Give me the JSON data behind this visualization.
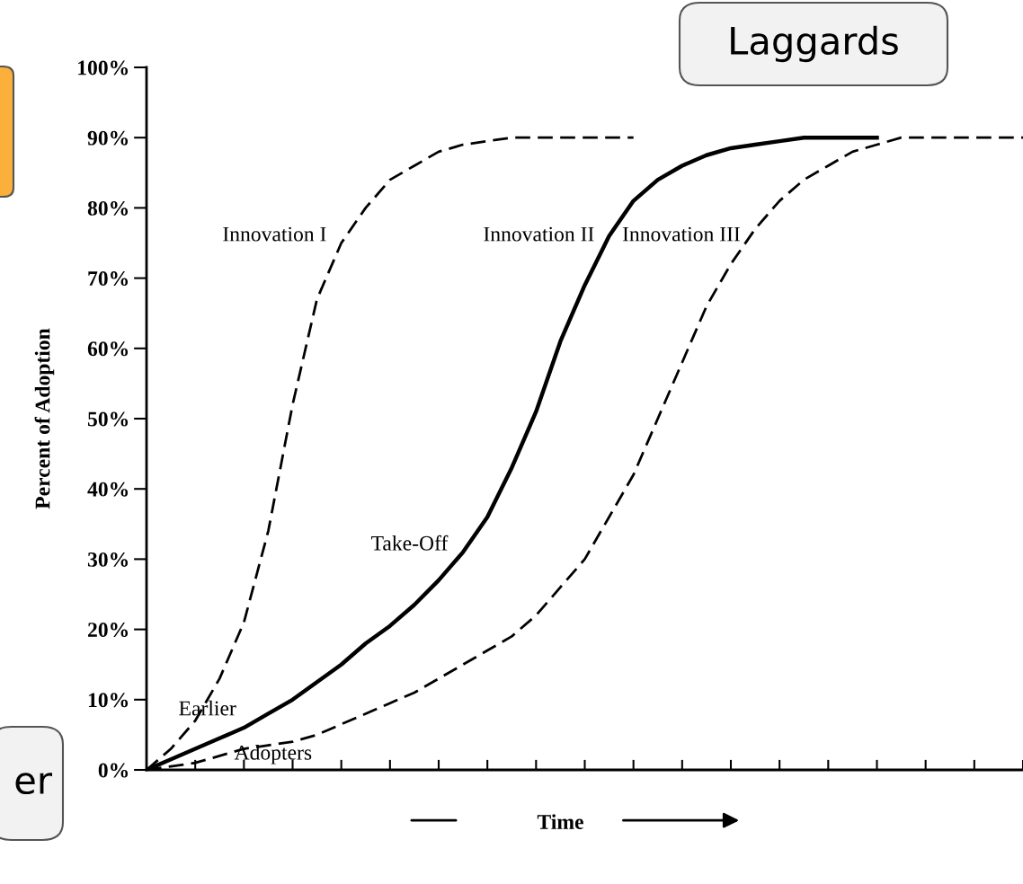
{
  "chart_data": {
    "type": "line",
    "ylabel": "Percent of Adoption",
    "xlabel": "Time",
    "categories": [
      null,
      null,
      null,
      null,
      null,
      null,
      null,
      null,
      null,
      null,
      null,
      null,
      null,
      null,
      null,
      null,
      null,
      null,
      null,
      null,
      null,
      null,
      null,
      null,
      null,
      null,
      null,
      null,
      null,
      null,
      null,
      null,
      null,
      null,
      null,
      null,
      null
    ],
    "ylim": [
      0,
      100
    ],
    "yticks": [
      {
        "value": 0,
        "label": "0%"
      },
      {
        "value": 10,
        "label": "10%"
      },
      {
        "value": 20,
        "label": "20%"
      },
      {
        "value": 30,
        "label": "30%"
      },
      {
        "value": 40,
        "label": "40%"
      },
      {
        "value": 50,
        "label": "50%"
      },
      {
        "value": 60,
        "label": "60%"
      },
      {
        "value": 70,
        "label": "70%"
      },
      {
        "value": 80,
        "label": "80%"
      },
      {
        "value": 90,
        "label": "90%"
      },
      {
        "value": 100,
        "label": "100%"
      }
    ],
    "grid": false,
    "legend": false,
    "marker": "none",
    "series": [
      {
        "name": "Innovation I",
        "color": "#000000",
        "line_style": "dashed",
        "values": [
          0,
          3,
          7,
          13,
          21,
          34,
          52,
          67,
          75,
          80,
          84,
          86,
          88,
          89,
          89.5,
          90,
          90,
          90,
          90,
          90,
          90,
          null,
          null,
          null,
          null,
          null,
          null,
          null,
          null,
          null,
          null,
          null,
          null,
          null,
          null,
          null,
          null
        ]
      },
      {
        "name": "Innovation II",
        "color": "#000000",
        "line_style": "solid",
        "values": [
          0,
          1.5,
          3,
          4.5,
          6,
          8,
          10,
          12.5,
          15,
          18,
          20.5,
          23.5,
          27,
          31,
          36,
          43,
          51,
          61,
          69,
          76,
          81,
          84,
          86,
          87.5,
          88.5,
          89,
          89.5,
          90,
          90,
          90,
          90,
          null,
          null,
          null,
          null,
          null,
          null
        ]
      },
      {
        "name": "Innovation III",
        "color": "#000000",
        "line_style": "dashed",
        "values": [
          0,
          0.5,
          1,
          2,
          3,
          3.5,
          4,
          5,
          6.5,
          8,
          9.5,
          11,
          13,
          15,
          17,
          19,
          22,
          26,
          30,
          36,
          42,
          50,
          58,
          66,
          72,
          77,
          81,
          84,
          86,
          88,
          89,
          90,
          90,
          90,
          90,
          90,
          90
        ]
      }
    ],
    "annotations": [
      "Earlier",
      "Adopters",
      "Take-Off",
      "Laggards",
      "er"
    ]
  }
}
